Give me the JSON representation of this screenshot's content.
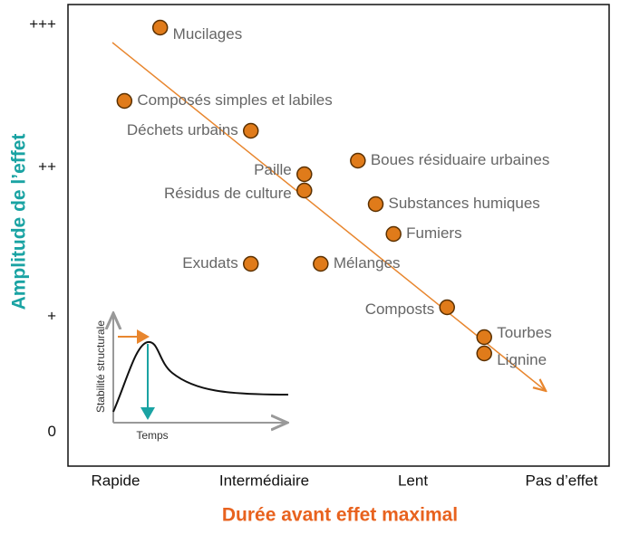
{
  "chart_data": {
    "type": "scatter",
    "x_label": "Durée avant effet maximal",
    "y_label": "Amplitude de l’effet",
    "xlim": [
      -0.32,
      3.32
    ],
    "xticks": [
      {
        "value": 0,
        "label": "Rapide"
      },
      {
        "value": 1,
        "label": "Intermédiaire"
      },
      {
        "value": 2,
        "label": "Lent"
      },
      {
        "value": 3,
        "label": "Pas d’effet"
      }
    ],
    "ylim": [
      -0.25,
      3.15
    ],
    "yticks": [
      0,
      {
        "value": 0.85,
        "label": "+"
      },
      {
        "value": 1.95,
        "label": "++"
      },
      {
        "value": 3,
        "label": "+++"
      }
    ],
    "color": "#e07b1a",
    "points": {
      "names": [
        "Mucilages",
        "Composés simples et labiles",
        "Déchets urbains",
        "Paille",
        "Résidus de culture",
        "Boues résiduaire urbaines",
        "Substances humiques",
        "Fumiers",
        "Exudats",
        "Mélanges",
        "Composts",
        "Tourbes",
        "Lignine"
      ],
      "x": [
        0.3,
        0.06,
        0.91,
        1.27,
        1.27,
        1.63,
        1.75,
        1.87,
        0.91,
        1.38,
        2.23,
        2.48,
        2.48
      ],
      "y": [
        2.98,
        2.44,
        2.22,
        1.9,
        1.78,
        2.0,
        1.68,
        1.46,
        1.24,
        1.24,
        0.92,
        0.7,
        0.58
      ]
    },
    "inset": {
      "y_label": "Stabilité structurale",
      "x_label": "Temps"
    }
  }
}
